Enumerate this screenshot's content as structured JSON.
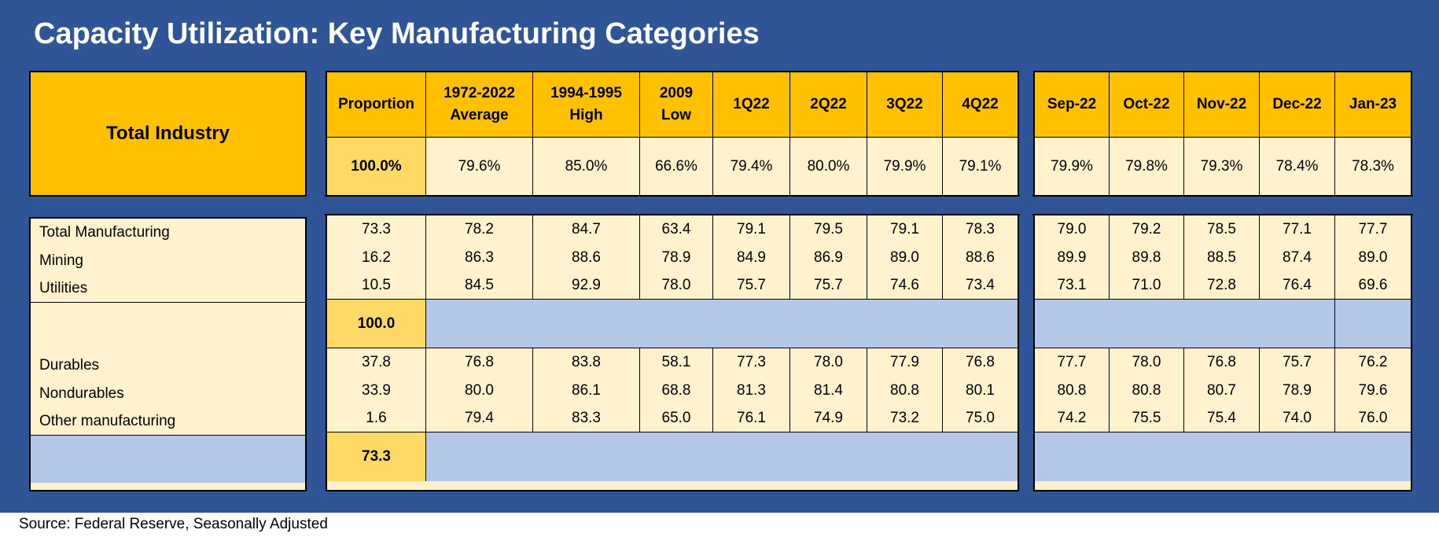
{
  "title": "Capacity Utilization: Key Manufacturing Categories",
  "source": "Source: Federal Reserve, Seasonally Adjusted",
  "colors": {
    "background": "#2f5597",
    "header": "#ffc000",
    "cell": "#fff2cc",
    "highlight": "#ffd966",
    "band": "#b4c7e7"
  },
  "chart_data": {
    "type": "table",
    "title": "Capacity Utilization: Key Manufacturing Categories",
    "total_label": "Total Industry",
    "columns": [
      "Proportion",
      "1972-2022 Average",
      "1994-1995 High",
      "2009 Low",
      "1Q22",
      "2Q22",
      "3Q22",
      "4Q22",
      "Sep-22",
      "Oct-22",
      "Nov-22",
      "Dec-22",
      "Jan-23"
    ],
    "header_lines": [
      [
        "Proportion"
      ],
      [
        "1972-2022",
        "Average"
      ],
      [
        "1994-1995",
        "High"
      ],
      [
        "2009",
        "Low"
      ],
      [
        "1Q22"
      ],
      [
        "2Q22"
      ],
      [
        "3Q22"
      ],
      [
        "4Q22"
      ],
      [
        "Sep-22"
      ],
      [
        "Oct-22"
      ],
      [
        "Nov-22"
      ],
      [
        "Dec-22"
      ],
      [
        "Jan-23"
      ]
    ],
    "total_values": [
      "100.0%",
      "79.6%",
      "85.0%",
      "66.6%",
      "79.4%",
      "80.0%",
      "79.9%",
      "79.1%",
      "79.9%",
      "79.8%",
      "79.3%",
      "78.4%",
      "78.3%"
    ],
    "group1": {
      "rows": [
        {
          "label": "Total Manufacturing",
          "values": [
            "73.3",
            "78.2",
            "84.7",
            "63.4",
            "79.1",
            "79.5",
            "79.1",
            "78.3",
            "79.0",
            "79.2",
            "78.5",
            "77.1",
            "77.7"
          ]
        },
        {
          "label": "Mining",
          "values": [
            "16.2",
            "86.3",
            "88.6",
            "78.9",
            "84.9",
            "86.9",
            "89.0",
            "88.6",
            "89.9",
            "89.8",
            "88.5",
            "87.4",
            "89.0"
          ]
        },
        {
          "label": "Utilities",
          "values": [
            "10.5",
            "84.5",
            "92.9",
            "78.0",
            "75.7",
            "75.7",
            "74.6",
            "73.4",
            "73.1",
            "71.0",
            "72.8",
            "76.4",
            "69.6"
          ]
        }
      ],
      "proportion_sum": "100.0"
    },
    "group2": {
      "rows": [
        {
          "label": "Durables",
          "values": [
            "37.8",
            "76.8",
            "83.8",
            "58.1",
            "77.3",
            "78.0",
            "77.9",
            "76.8",
            "77.7",
            "78.0",
            "76.8",
            "75.7",
            "76.2"
          ]
        },
        {
          "label": "Nondurables",
          "values": [
            "33.9",
            "80.0",
            "86.1",
            "68.8",
            "81.3",
            "81.4",
            "80.8",
            "80.1",
            "80.8",
            "80.8",
            "80.7",
            "78.9",
            "79.6"
          ]
        },
        {
          "label": "Other manufacturing",
          "values": [
            "1.6",
            "79.4",
            "83.3",
            "65.0",
            "76.1",
            "74.9",
            "73.2",
            "75.0",
            "74.2",
            "75.5",
            "75.4",
            "74.0",
            "76.0"
          ]
        }
      ],
      "proportion_sum": "73.3"
    }
  }
}
